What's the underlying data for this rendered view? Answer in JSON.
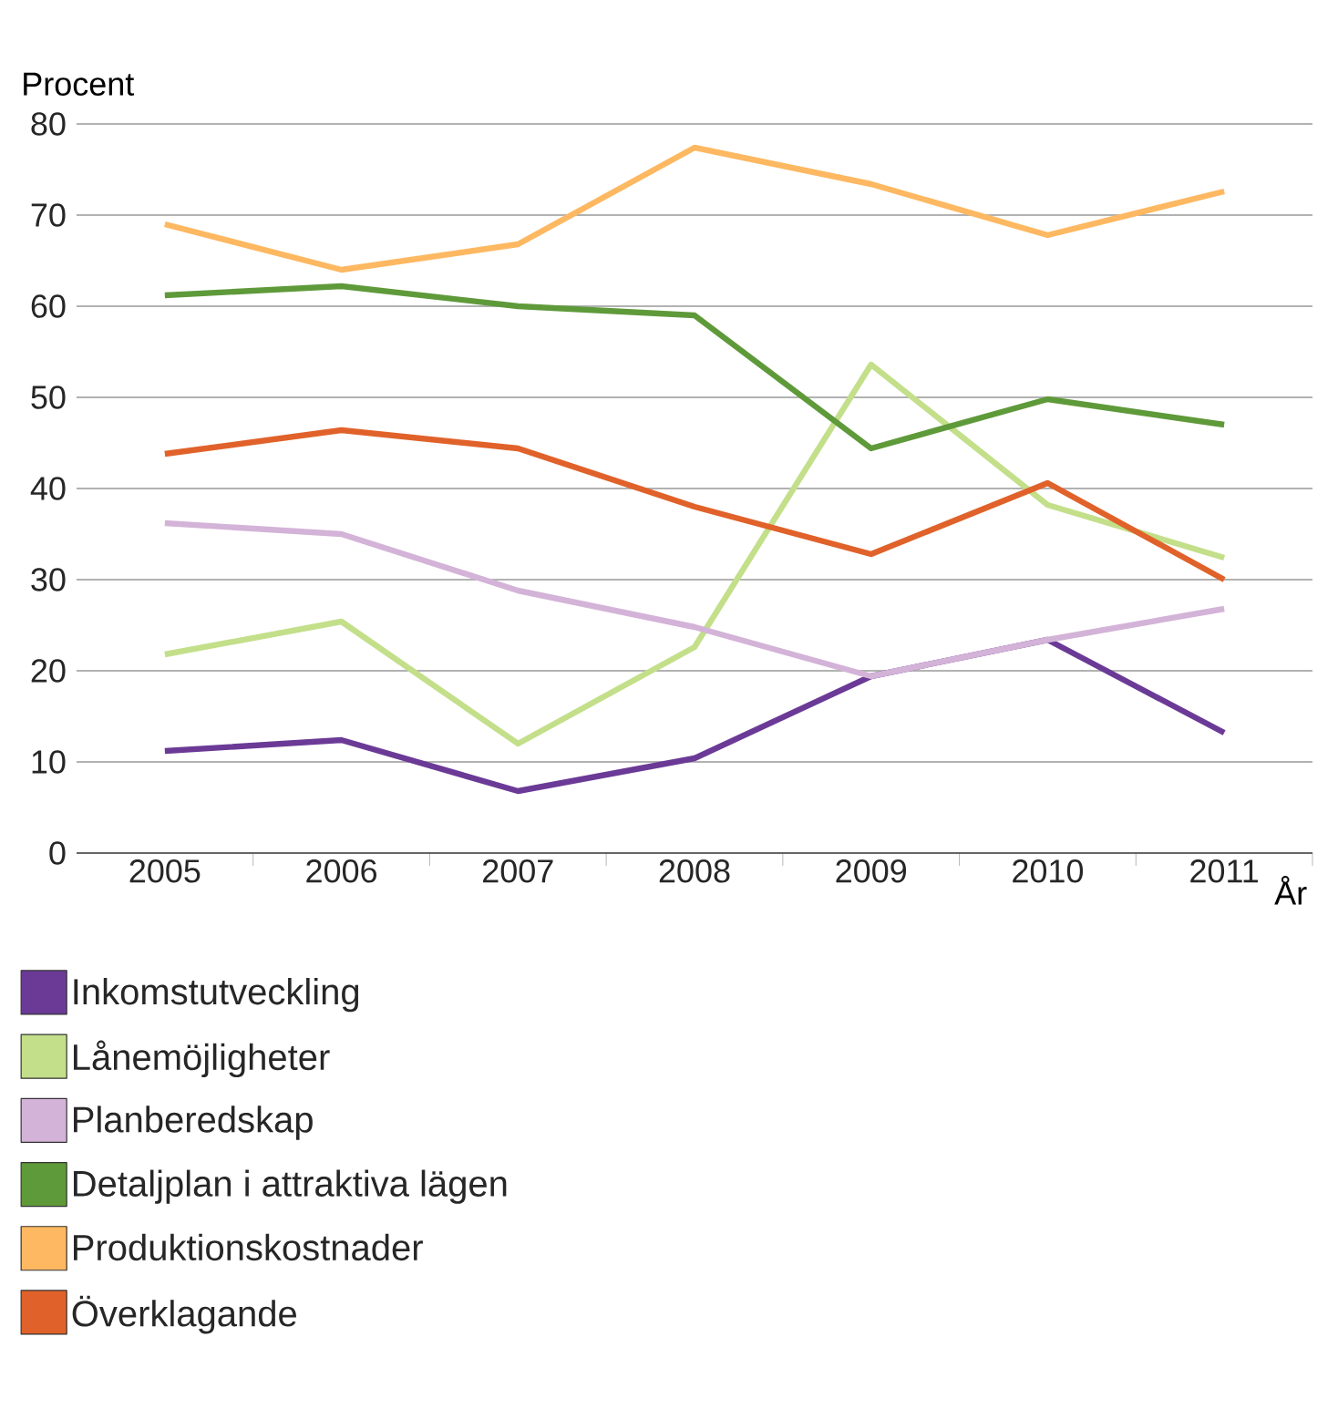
{
  "chart_data": {
    "type": "line",
    "ylabel": "Procent",
    "xlabel": "År",
    "categories": [
      "2005",
      "2006",
      "2007",
      "2008",
      "2009",
      "2010",
      "2011"
    ],
    "ylim": [
      0,
      80
    ],
    "yticks": [
      0,
      10,
      20,
      30,
      40,
      50,
      60,
      70,
      80
    ],
    "grid": "y",
    "legend": "bottom",
    "marker": "none",
    "series": [
      {
        "name": "Inkomstutveckling",
        "color": "#6b3a96",
        "values": [
          11.2,
          12.4,
          6.8,
          10.4,
          19.4,
          23.4,
          13.2
        ]
      },
      {
        "name": "Lånemöjligheter",
        "color": "#c3df8a",
        "values": [
          21.8,
          25.4,
          12,
          22.6,
          53.6,
          38.2,
          32.4
        ]
      },
      {
        "name": "Planberedskap",
        "color": "#d4b3d8",
        "values": [
          36.2,
          35,
          28.8,
          24.8,
          19.4,
          23.4,
          26.8
        ]
      },
      {
        "name": "Detaljplan i attraktiva lägen",
        "color": "#5f9a3a",
        "values": [
          61.2,
          62.2,
          60,
          59,
          44.4,
          49.8,
          47
        ]
      },
      {
        "name": "Produktionskostnader",
        "color": "#fdb861",
        "values": [
          69,
          64,
          66.8,
          77.4,
          73.4,
          67.8,
          72.6
        ]
      },
      {
        "name": "Överklagande",
        "color": "#e0622a",
        "values": [
          43.8,
          46.4,
          44.4,
          38,
          32.8,
          40.6,
          30
        ]
      }
    ]
  }
}
